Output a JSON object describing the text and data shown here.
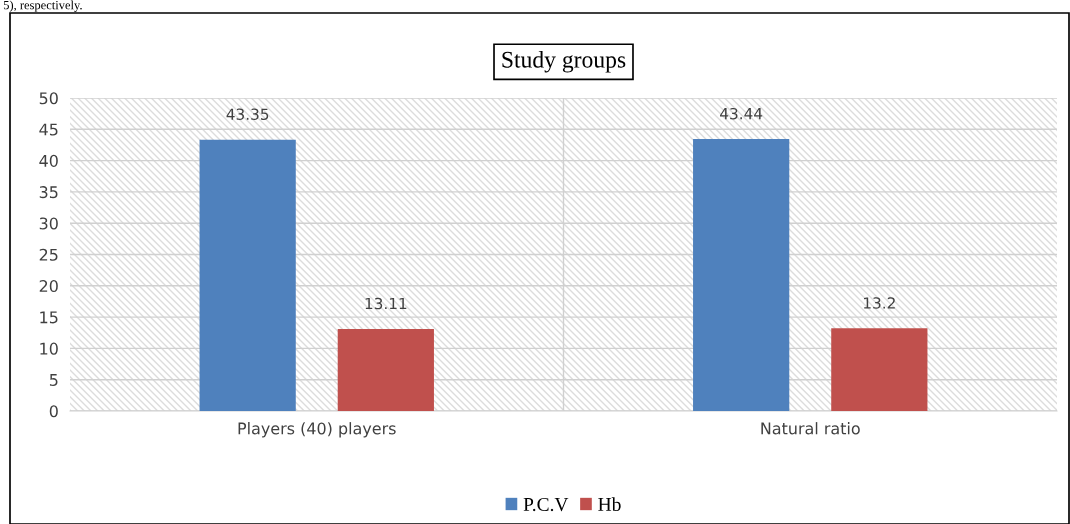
{
  "chart_data": {
    "type": "bar",
    "title": "Study groups",
    "categories": [
      "Players (40) players",
      "Natural ratio"
    ],
    "series": [
      {
        "name": "P.C.V",
        "color": "#4f81bd",
        "values": [
          43.35,
          43.44
        ]
      },
      {
        "name": "Hb",
        "color": "#c0504d",
        "values": [
          13.11,
          13.2
        ]
      }
    ],
    "ylim": [
      0,
      50
    ],
    "yticks": [
      0,
      5,
      10,
      15,
      20,
      25,
      30,
      35,
      40,
      45,
      50
    ],
    "grid": true,
    "legend": "bottom",
    "data_labels": true,
    "annotations": [
      "5), respectively."
    ]
  }
}
